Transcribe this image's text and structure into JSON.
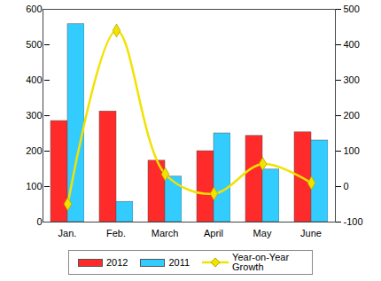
{
  "chart_data": {
    "type": "bar",
    "categories": [
      "Jan.",
      "Feb.",
      "March",
      "April",
      "May",
      "June"
    ],
    "series": [
      {
        "name": "2012",
        "color": "#ff2a2a",
        "values": [
          285,
          312,
          173,
          200,
          243,
          253
        ]
      },
      {
        "name": "2011",
        "color": "#33ccff",
        "values": [
          558,
          57,
          128,
          250,
          148,
          230
        ]
      },
      {
        "name": "Year-on-Year Growth",
        "type": "line",
        "axis": "y2",
        "color": "#f2e200",
        "marker": "diamond",
        "values": [
          -49,
          440,
          35,
          -20,
          64,
          10
        ]
      }
    ],
    "ylim": [
      0,
      600
    ],
    "yticks": [
      0,
      100,
      200,
      300,
      400,
      500,
      600
    ],
    "y2lim": [
      -100,
      500
    ],
    "y2ticks": [
      -100,
      0,
      100,
      200,
      300,
      400,
      500
    ],
    "grid": false,
    "legend": "bottom"
  }
}
